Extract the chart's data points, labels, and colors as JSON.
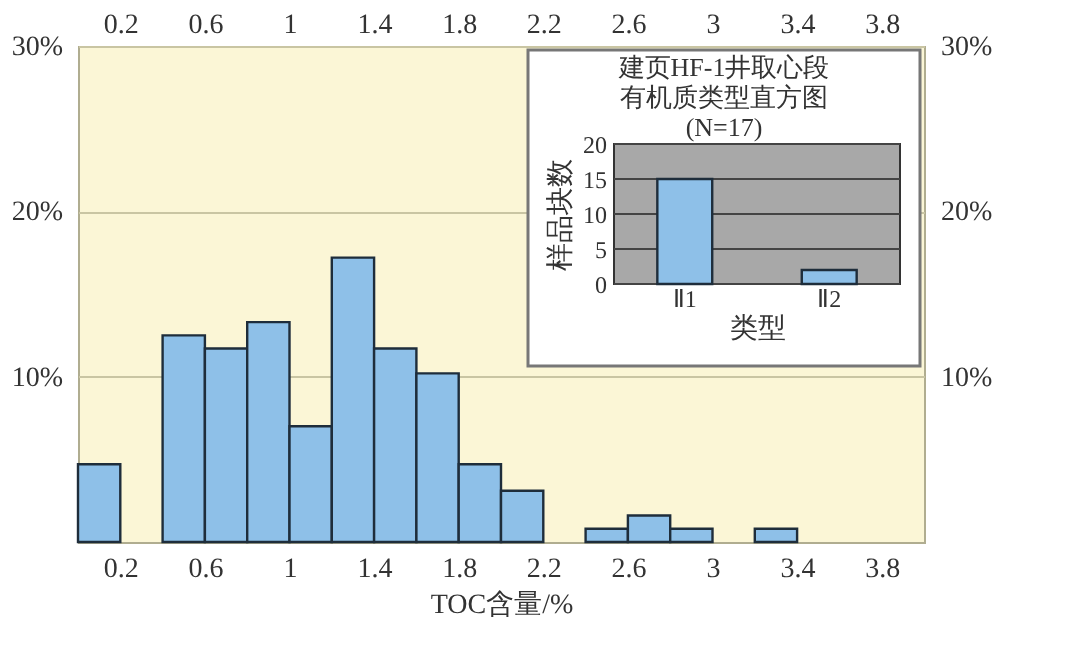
{
  "chart_data": [
    {
      "type": "histogram",
      "xlabel": "TOC含量/%",
      "color": "#8ec0e8",
      "bins": [
        0,
        0.2,
        0.4,
        0.6,
        0.8,
        1.0,
        1.2,
        1.4,
        1.6,
        1.8,
        2.0,
        2.2,
        2.4,
        2.6,
        2.8,
        3.0,
        3.2,
        3.4,
        3.6,
        3.8,
        4.0
      ],
      "values": [
        4.7,
        0,
        12.5,
        11.7,
        13.3,
        7.0,
        17.2,
        11.7,
        10.2,
        4.7,
        3.1,
        0,
        0.8,
        1.6,
        0.8,
        0,
        0.8,
        0,
        0,
        0
      ],
      "xlim": [
        0,
        4.0
      ],
      "xticks": [
        0.2,
        0.6,
        1,
        1.4,
        1.8,
        2.2,
        2.6,
        3,
        3.4,
        3.8
      ],
      "x2lim": [
        0,
        4.0
      ],
      "x2ticks": [
        0.2,
        0.6,
        1,
        1.4,
        1.8,
        2.2,
        2.6,
        3,
        3.4,
        3.8
      ],
      "ylim": [
        0,
        30
      ],
      "yticks": [
        {
          "value": 10,
          "label": "10%"
        },
        {
          "value": 20,
          "label": "20%"
        },
        {
          "value": 30,
          "label": "30%"
        }
      ],
      "y2lim": [
        0,
        30
      ],
      "y2ticks": [
        {
          "value": 10,
          "label": "10%"
        },
        {
          "value": 20,
          "label": "20%"
        },
        {
          "value": 30,
          "label": "30%"
        }
      ],
      "grid": "y"
    },
    {
      "type": "bar",
      "title": "建页HF-1井取心段有机质类型直方图",
      "subtitle": "(N=17)",
      "xlabel": "类型",
      "ylabel": "样品块数",
      "categories": [
        "Ⅱ1",
        "Ⅱ2"
      ],
      "values": [
        15,
        2
      ],
      "color": "#8ec0e8",
      "ylim": [
        0,
        20
      ],
      "yticks": [
        0,
        5,
        10,
        15,
        20
      ],
      "grid": "y"
    }
  ]
}
